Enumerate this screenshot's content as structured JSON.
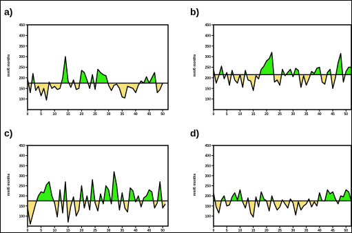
{
  "figure_border_color": "#000000",
  "colors": {
    "above": "#33ee11",
    "below": "#f5e27a",
    "line": "#000000",
    "mean": "#000000"
  },
  "chart_data": [
    {
      "panel": "a)",
      "type": "area",
      "ylabel": "mm/6 months",
      "ylim": [
        50,
        450
      ],
      "yticks": [
        100,
        150,
        200,
        250,
        300,
        350,
        400,
        450
      ],
      "xlim": [
        0,
        52
      ],
      "xticks": [
        0,
        5,
        10,
        15,
        20,
        25,
        30,
        35,
        40,
        45,
        50
      ],
      "mean": 175,
      "y": [
        195,
        130,
        220,
        140,
        160,
        115,
        150,
        95,
        180,
        150,
        160,
        145,
        150,
        200,
        300,
        185,
        155,
        190,
        145,
        150,
        235,
        225,
        190,
        150,
        215,
        145,
        240,
        225,
        215,
        210,
        165,
        140,
        165,
        170,
        150,
        110,
        105,
        160,
        155,
        150,
        130,
        165,
        185,
        175,
        205,
        175,
        200,
        225,
        130,
        145,
        175
      ]
    },
    {
      "panel": "b)",
      "type": "area",
      "ylabel": "mm/6 months",
      "ylim": [
        50,
        450
      ],
      "yticks": [
        100,
        150,
        200,
        250,
        300,
        350,
        400,
        450
      ],
      "xlim": [
        0,
        52
      ],
      "xticks": [
        0,
        5,
        10,
        15,
        20,
        25,
        30,
        35,
        40,
        45,
        50
      ],
      "mean": 215,
      "y": [
        240,
        175,
        210,
        255,
        195,
        225,
        165,
        235,
        190,
        175,
        215,
        155,
        235,
        190,
        185,
        140,
        210,
        195,
        240,
        255,
        280,
        290,
        320,
        180,
        190,
        165,
        240,
        210,
        225,
        240,
        205,
        245,
        235,
        155,
        210,
        165,
        195,
        230,
        220,
        245,
        250,
        180,
        170,
        225,
        240,
        150,
        200,
        270,
        315,
        180,
        230,
        250,
        250
      ]
    },
    {
      "panel": "c)",
      "type": "area",
      "ylabel": "mm/6 months",
      "ylim": [
        50,
        450
      ],
      "yticks": [
        100,
        150,
        200,
        250,
        300,
        350,
        400,
        450
      ],
      "xlim": [
        0,
        52
      ],
      "xticks": [
        0,
        5,
        10,
        15,
        20,
        25,
        30,
        35,
        40,
        45,
        50
      ],
      "mean": 175,
      "y": [
        140,
        60,
        110,
        160,
        200,
        220,
        215,
        255,
        270,
        200,
        165,
        95,
        230,
        115,
        270,
        70,
        150,
        195,
        100,
        130,
        250,
        140,
        200,
        130,
        280,
        165,
        125,
        210,
        160,
        250,
        230,
        160,
        320,
        250,
        130,
        215,
        140,
        120,
        240,
        225,
        170,
        200,
        145,
        190,
        200,
        230,
        220,
        140,
        165,
        270,
        140,
        160
      ]
    },
    {
      "panel": "d)",
      "type": "area",
      "ylabel": "mm/6 months",
      "ylim": [
        50,
        450
      ],
      "yticks": [
        100,
        150,
        200,
        250,
        300,
        350,
        400,
        450
      ],
      "xlim": [
        0,
        52
      ],
      "xticks": [
        0,
        5,
        10,
        15,
        20,
        25,
        30,
        35,
        40,
        45,
        50
      ],
      "mean": 175,
      "y": [
        215,
        145,
        115,
        180,
        200,
        150,
        155,
        195,
        215,
        180,
        230,
        170,
        140,
        190,
        115,
        95,
        195,
        145,
        220,
        185,
        175,
        125,
        200,
        160,
        130,
        145,
        180,
        160,
        140,
        185,
        165,
        105,
        170,
        130,
        150,
        160,
        185,
        145,
        170,
        150,
        215,
        175,
        175,
        230,
        210,
        220,
        185,
        160,
        200,
        195,
        230,
        220,
        175
      ]
    }
  ]
}
